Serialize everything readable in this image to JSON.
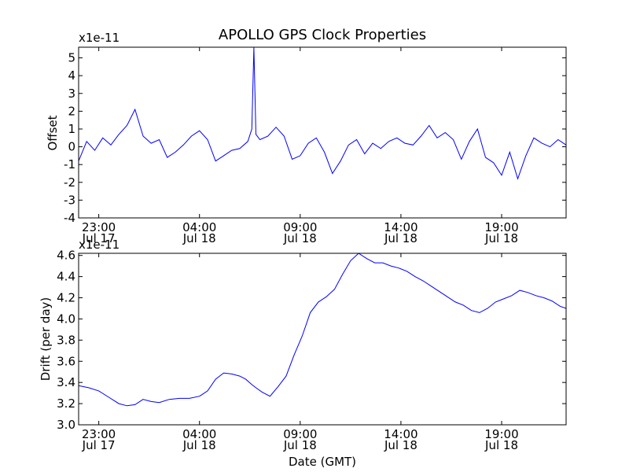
{
  "chart_data": [
    {
      "type": "line",
      "title": "APOLLO GPS Clock Properties",
      "ylabel": "Offset",
      "xlabel": "",
      "offset_label": "x1e-11",
      "ylim": [
        -4,
        5.6
      ],
      "xlim": [
        -1.0,
        23.2
      ],
      "yticks": [
        -4,
        -3,
        -2,
        -1,
        0,
        1,
        2,
        3,
        4,
        5
      ],
      "ytick_labels": [
        "-4",
        "-3",
        "-2",
        "-1",
        "0",
        "1",
        "2",
        "3",
        "4",
        "5"
      ],
      "xticks": [
        0,
        5,
        10,
        15,
        20
      ],
      "xtick_labels": [
        [
          "23:00",
          "Jul 17"
        ],
        [
          "04:00",
          "Jul 18"
        ],
        [
          "09:00",
          "Jul 18"
        ],
        [
          "14:00",
          "Jul 18"
        ],
        [
          "19:00",
          "Jul 18"
        ]
      ],
      "color": "#0000ff",
      "series": [
        {
          "name": "Offset",
          "x": [
            -1.0,
            -0.6,
            -0.2,
            0.2,
            0.6,
            1.0,
            1.4,
            1.8,
            2.2,
            2.6,
            3.0,
            3.4,
            3.8,
            4.2,
            4.6,
            5.0,
            5.4,
            5.8,
            6.2,
            6.6,
            7.0,
            7.4,
            7.6,
            7.7,
            7.8,
            8.0,
            8.4,
            8.8,
            9.2,
            9.6,
            10.0,
            10.4,
            10.8,
            11.2,
            11.6,
            12.0,
            12.4,
            12.8,
            13.2,
            13.6,
            14.0,
            14.4,
            14.8,
            15.2,
            15.6,
            16.0,
            16.4,
            16.8,
            17.2,
            17.6,
            18.0,
            18.4,
            18.8,
            19.2,
            19.6,
            20.0,
            20.4,
            20.8,
            21.2,
            21.6,
            22.0,
            22.4,
            22.8,
            23.2
          ],
          "values": [
            -0.8,
            0.3,
            -0.2,
            0.5,
            0.1,
            0.7,
            1.2,
            2.1,
            0.6,
            0.2,
            0.4,
            -0.6,
            -0.3,
            0.1,
            0.6,
            0.9,
            0.4,
            -0.8,
            -0.5,
            -0.2,
            -0.1,
            0.3,
            1.0,
            5.6,
            0.7,
            0.4,
            0.6,
            1.1,
            0.6,
            -0.7,
            -0.5,
            0.2,
            0.5,
            -0.3,
            -1.5,
            -0.8,
            0.1,
            0.4,
            -0.4,
            0.2,
            -0.1,
            0.3,
            0.5,
            0.2,
            0.1,
            0.6,
            1.2,
            0.5,
            0.8,
            0.4,
            -0.7,
            0.3,
            1.0,
            -0.6,
            -0.9,
            -1.6,
            -0.3,
            -1.8,
            -0.5,
            0.5,
            0.2,
            0.0,
            0.4,
            0.1
          ]
        }
      ]
    },
    {
      "type": "line",
      "title": "",
      "ylabel": "Drift (per day)",
      "xlabel": "Date (GMT)",
      "offset_label": "x1e-11",
      "ylim": [
        3.0,
        4.62
      ],
      "xlim": [
        -1.0,
        23.2
      ],
      "yticks": [
        3.0,
        3.2,
        3.4,
        3.6,
        3.8,
        4.0,
        4.2,
        4.4,
        4.6
      ],
      "ytick_labels": [
        "3.0",
        "3.2",
        "3.4",
        "3.6",
        "3.8",
        "4.0",
        "4.2",
        "4.4",
        "4.6"
      ],
      "xticks": [
        0,
        5,
        10,
        15,
        20
      ],
      "xtick_labels": [
        [
          "23:00",
          "Jul 17"
        ],
        [
          "04:00",
          "Jul 18"
        ],
        [
          "09:00",
          "Jul 18"
        ],
        [
          "14:00",
          "Jul 18"
        ],
        [
          "19:00",
          "Jul 18"
        ]
      ],
      "color": "#0000ff",
      "series": [
        {
          "name": "Drift",
          "x": [
            -1.0,
            -0.5,
            0.0,
            0.5,
            1.0,
            1.4,
            1.8,
            2.2,
            2.6,
            3.0,
            3.5,
            4.0,
            4.5,
            5.0,
            5.4,
            5.8,
            6.2,
            6.6,
            7.0,
            7.3,
            7.6,
            7.8,
            8.1,
            8.5,
            8.9,
            9.3,
            9.7,
            10.1,
            10.5,
            10.9,
            11.3,
            11.7,
            12.1,
            12.5,
            12.9,
            13.3,
            13.7,
            14.1,
            14.5,
            14.9,
            15.3,
            15.7,
            16.1,
            16.5,
            16.9,
            17.3,
            17.7,
            18.1,
            18.5,
            18.9,
            19.3,
            19.7,
            20.1,
            20.5,
            20.9,
            21.3,
            21.7,
            22.1,
            22.5,
            22.9,
            23.2
          ],
          "values": [
            3.37,
            3.35,
            3.32,
            3.26,
            3.2,
            3.18,
            3.19,
            3.24,
            3.22,
            3.21,
            3.24,
            3.25,
            3.25,
            3.27,
            3.32,
            3.43,
            3.49,
            3.48,
            3.46,
            3.43,
            3.38,
            3.35,
            3.31,
            3.27,
            3.36,
            3.46,
            3.66,
            3.84,
            4.06,
            4.16,
            4.21,
            4.28,
            4.42,
            4.55,
            4.62,
            4.57,
            4.53,
            4.53,
            4.5,
            4.48,
            4.45,
            4.4,
            4.36,
            4.31,
            4.26,
            4.21,
            4.16,
            4.13,
            4.08,
            4.06,
            4.1,
            4.16,
            4.19,
            4.22,
            4.27,
            4.25,
            4.22,
            4.2,
            4.17,
            4.12,
            4.1
          ]
        }
      ]
    }
  ]
}
